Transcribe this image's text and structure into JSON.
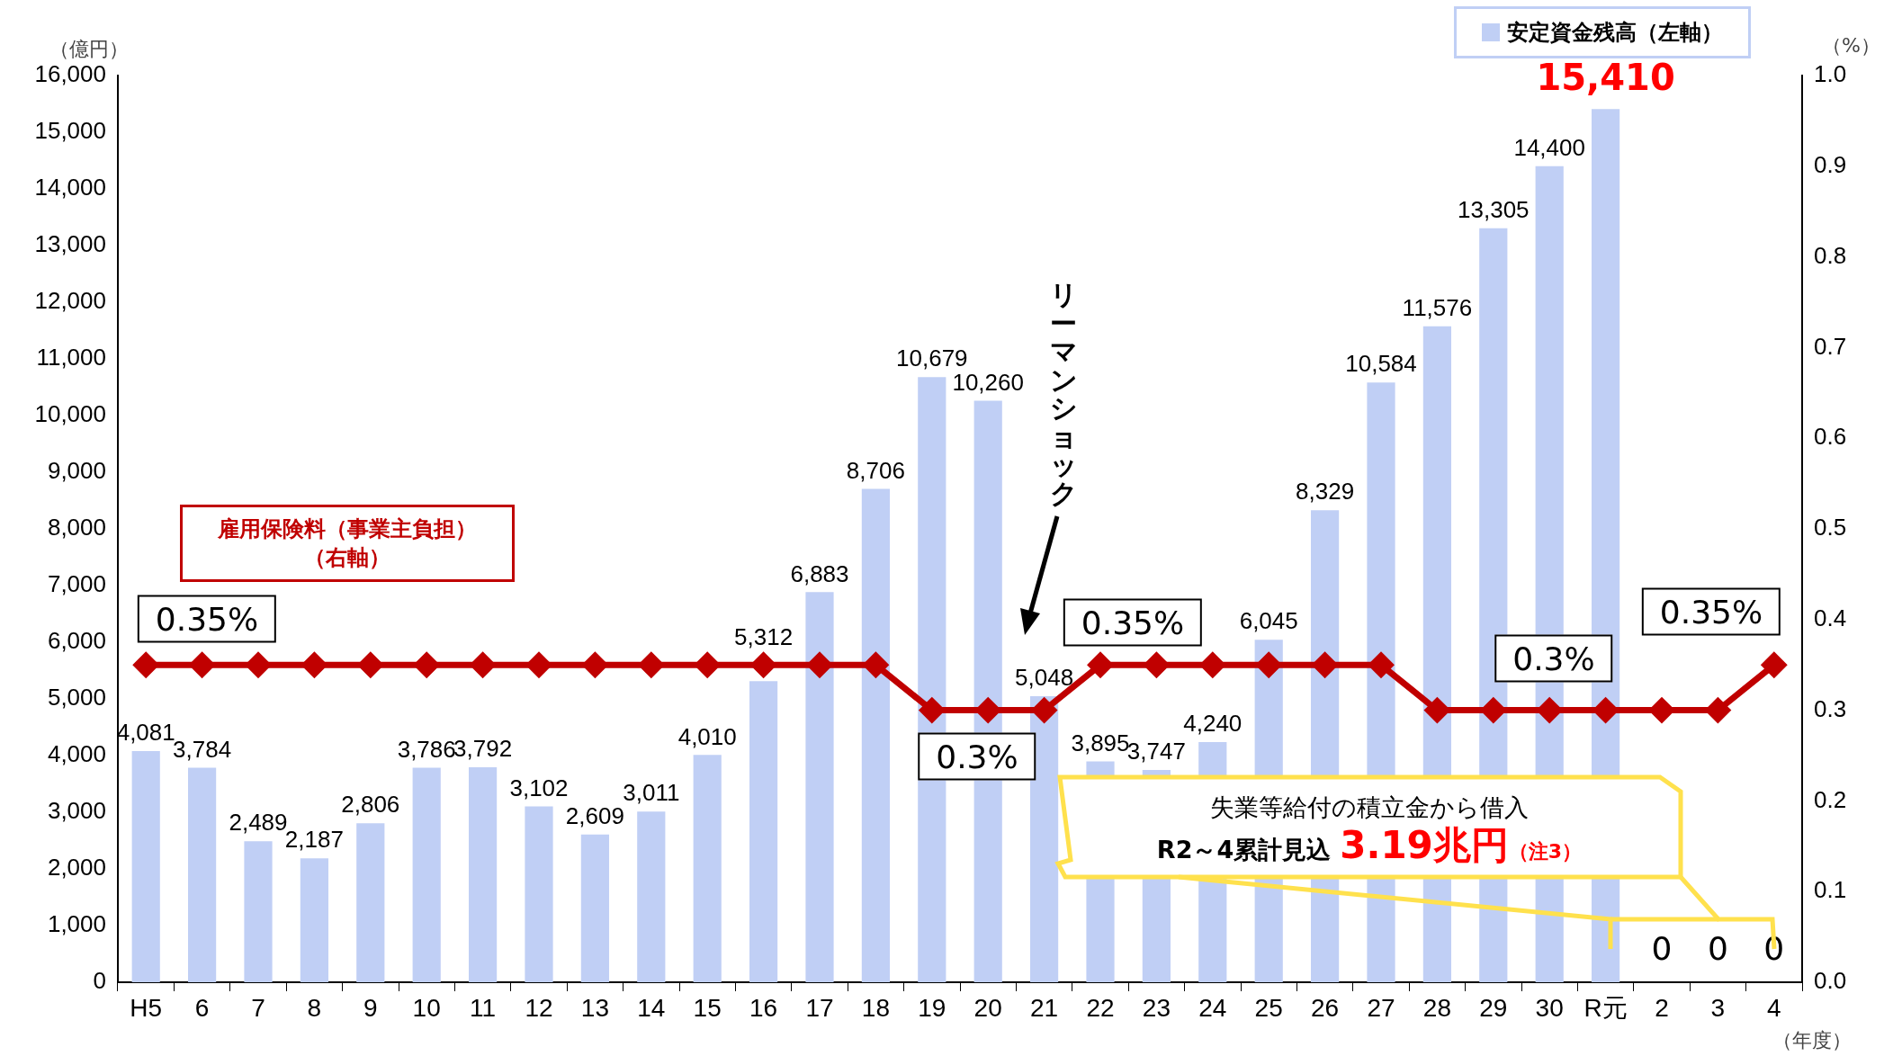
{
  "chart_data": {
    "type": "bar",
    "categories": [
      "H5",
      "6",
      "7",
      "8",
      "9",
      "10",
      "11",
      "12",
      "13",
      "14",
      "15",
      "16",
      "17",
      "18",
      "19",
      "20",
      "21",
      "22",
      "23",
      "24",
      "25",
      "26",
      "27",
      "28",
      "29",
      "30",
      "R元",
      "2",
      "3",
      "4"
    ],
    "series": [
      {
        "name": "安定資金残高（左軸）",
        "color": "#c0cff5",
        "values": [
          4081,
          3784,
          2489,
          2187,
          2806,
          3786,
          3792,
          3102,
          2609,
          3011,
          4010,
          5312,
          6883,
          8706,
          10679,
          10260,
          5048,
          3895,
          3747,
          4240,
          6045,
          8329,
          10584,
          11576,
          13305,
          14400,
          15410,
          0,
          0,
          0
        ],
        "value_labels": [
          "4,081",
          "3,784",
          "2,489",
          "2,187",
          "2,806",
          "3,786",
          "3,792",
          "3,102",
          "2,609",
          "3,011",
          "4,010",
          "5,312",
          "6,883",
          "8,706",
          "10,679",
          "10,260",
          "5,048",
          "3,895",
          "3,747",
          "4,240",
          "6,045",
          "8,329",
          "10,584",
          "11,576",
          "13,305",
          "14,400",
          "15,410",
          "0",
          "0",
          "0"
        ]
      },
      {
        "name": "雇用保険料（事業主負担）（右軸）",
        "type": "line",
        "axis": "y2",
        "color": "#c00000",
        "values": [
          0.35,
          0.35,
          0.35,
          0.35,
          0.35,
          0.35,
          0.35,
          0.35,
          0.35,
          0.35,
          0.35,
          0.35,
          0.35,
          0.35,
          0.3,
          0.3,
          0.3,
          0.35,
          0.35,
          0.35,
          0.35,
          0.35,
          0.35,
          0.3,
          0.3,
          0.3,
          0.3,
          0.3,
          0.3,
          0.35
        ]
      }
    ],
    "marker": "diamond",
    "grid": false,
    "ylim": [
      0,
      16000
    ],
    "yticks": [
      0,
      {
        "value": 1000,
        "label": "1,000"
      },
      {
        "value": 2000,
        "label": "2,000"
      },
      {
        "value": 3000,
        "label": "3,000"
      },
      {
        "value": 4000,
        "label": "4,000"
      },
      {
        "value": 5000,
        "label": "5,000"
      },
      {
        "value": 6000,
        "label": "6,000"
      },
      {
        "value": 7000,
        "label": "7,000"
      },
      {
        "value": 8000,
        "label": "8,000"
      },
      {
        "value": 9000,
        "label": "9,000"
      },
      {
        "value": 10000,
        "label": "10,000"
      },
      {
        "value": 11000,
        "label": "11,000"
      },
      {
        "value": 12000,
        "label": "12,000"
      },
      {
        "value": 13000,
        "label": "13,000"
      },
      {
        "value": 14000,
        "label": "14,000"
      },
      {
        "value": 15000,
        "label": "15,000"
      },
      {
        "value": 16000,
        "label": "16,000"
      }
    ],
    "y2lim": [
      0,
      1
    ],
    "y2ticks": [
      {
        "value": 0,
        "label": "0.0"
      },
      0.1,
      0.2,
      0.3,
      0.4,
      0.5,
      0.6,
      0.7,
      0.8,
      0.9,
      {
        "value": 1,
        "label": "1.0"
      }
    ],
    "annotations": [
      "（億円）",
      "（%）",
      "（年度）",
      "0.35%",
      "0.3%",
      "0.35%",
      "0.3%",
      "0.35%",
      "リーマンショック",
      "失業等給付の積立金から借入",
      "R2～4累計見込",
      "3.19兆円",
      "（注3）"
    ]
  }
}
